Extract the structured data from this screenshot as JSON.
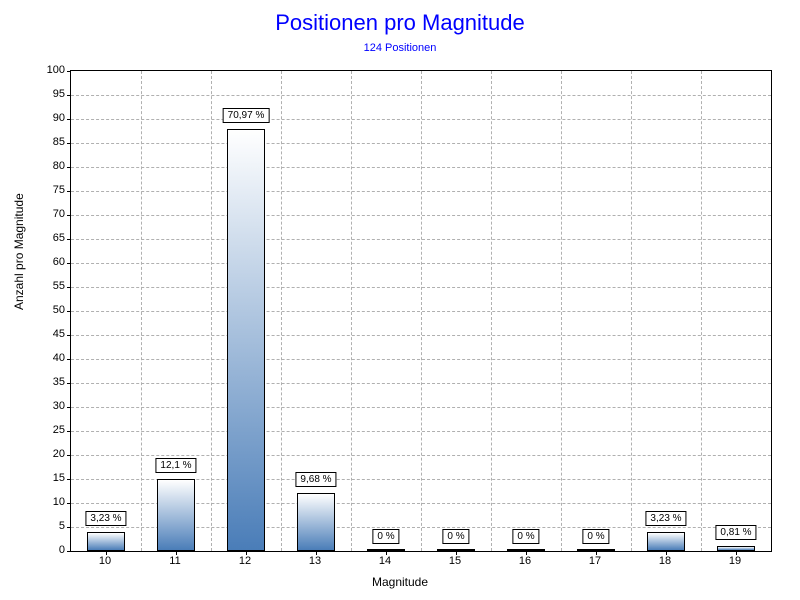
{
  "chart": {
    "type": "bar",
    "title": "Positionen pro Magnitude",
    "title_color": "#0000ff",
    "title_fontsize": 22,
    "subtitle": "124 Positionen",
    "subtitle_color": "#0000ff",
    "subtitle_fontsize": 11,
    "xlabel": "Magnitude",
    "ylabel": "Anzahl pro Magnitude",
    "label_fontsize": 12,
    "categories": [
      "10",
      "11",
      "12",
      "13",
      "14",
      "15",
      "16",
      "17",
      "18",
      "19"
    ],
    "values": [
      4,
      15,
      88,
      12,
      0,
      0,
      0,
      0,
      4,
      1
    ],
    "value_labels": [
      "3,23 %",
      "12,1 %",
      "70,97 %",
      "9,68 %",
      "0 %",
      "0 %",
      "0 %",
      "0 %",
      "3,23 %",
      "0,81 %"
    ],
    "ylim": [
      0,
      100
    ],
    "ytick_step": 5,
    "yticks": [
      0,
      5,
      10,
      15,
      20,
      25,
      30,
      35,
      40,
      45,
      50,
      55,
      60,
      65,
      70,
      75,
      80,
      85,
      90,
      95,
      100
    ],
    "bar_gradient_top": "#ffffff",
    "bar_gradient_bottom": "#4a7db8",
    "bar_border_color": "#000000",
    "bar_width_ratio": 0.55,
    "grid_color": "#b0b0b0",
    "grid_style": "dashed",
    "background_color": "#ffffff",
    "plot_border_color": "#000000",
    "tick_fontsize": 11,
    "value_label_fontsize": 10
  }
}
